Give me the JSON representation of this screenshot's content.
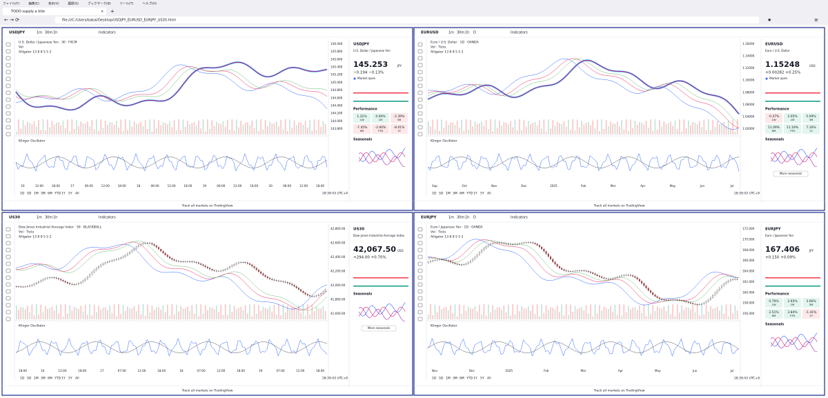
{
  "menu": [
    "ファイル(F)",
    "編集(E)",
    "表示(V)",
    "履歴(S)",
    "ブックマーク(B)",
    "ツール(T)",
    "ヘルプ(H)"
  ],
  "tab": {
    "title": "TODO supply a title"
  },
  "address": "file:///C:/Users/bakai/Desktop/USDJPY_EURUSD_EURJPY_US30.html",
  "widgets": [
    {
      "symbol": "USDJPY",
      "intervals": [
        "1m",
        "30m",
        "1h"
      ],
      "indicators": "Indicators",
      "legend": [
        "U.S. Dollar / Japanese Yen · 30 · FXCM",
        "Vol",
        "Alligator 13 8 8 5 5 2"
      ],
      "oscillator": "Klinger Oscillator",
      "price_ticks": [
        "146.000",
        "145.800",
        "145.600",
        "145.400",
        "145.200",
        "145.000",
        "144.800",
        "144.600",
        "144.400",
        "144.200",
        "144.000",
        "143.800"
      ],
      "time_ticks": [
        "16",
        "12:00",
        "18:00",
        "17",
        "06:00",
        "12:00",
        "18:00",
        "18",
        "06:00",
        "12:00",
        "18:00",
        "19",
        "06:00",
        "12:00",
        "18:00",
        "20",
        "06:00",
        "12:00",
        "18:00"
      ],
      "ranges": [
        "1D",
        "5D",
        "1M",
        "3M",
        "6M",
        "YTD",
        "1Y",
        "5Y",
        "All"
      ],
      "clock": "18:39:43 UTC+9",
      "footer": "Track all markets on TradingView",
      "side": {
        "symbol": "USDJPY",
        "name": "U.S. Dollar / Japanese Yen",
        "price": "145.253",
        "unit": "JPY",
        "change": "−0.194 −0.13%",
        "status": "Market open",
        "performance": {
          "title": "Performance",
          "cells": [
            {
              "value": "1.31%",
              "period": "1W"
            },
            {
              "value": "0.00%",
              "period": "1M"
            },
            {
              "value": "-2.39%",
              "period": "3M"
            },
            {
              "value": "-7.45%",
              "period": "6M"
            },
            {
              "value": "-2.60%",
              "period": "YTD"
            },
            {
              "value": "-8.01%",
              "period": "1Y"
            }
          ]
        },
        "seasonals": "Seasonals"
      },
      "style": "line"
    },
    {
      "symbol": "EURUSD",
      "intervals": [
        "1m",
        "30m",
        "1h",
        "D"
      ],
      "indicators": "Indicators",
      "legend": [
        "Euro / U.S. Dollar · 1D · OANDA",
        "Vol · Ticks",
        "Alligator 13 8 8 5 5 2"
      ],
      "oscillator": "Klinger Oscillator",
      "price_ticks": [
        "1.16000",
        "1.14000",
        "1.12000",
        "1.10000",
        "1.08000",
        "1.06000",
        "1.04000",
        "1.02000"
      ],
      "time_ticks": [
        "Sep",
        "Oct",
        "Nov",
        "Dec",
        "2025",
        "Feb",
        "Mar",
        "Apr",
        "May",
        "Jun",
        "Jul"
      ],
      "ranges": [
        "1D",
        "5D",
        "1M",
        "3M",
        "6M",
        "YTD",
        "1Y",
        "5Y",
        "All"
      ],
      "clock": "18:39:43 UTC+9",
      "footer": "Track all markets on TradingView",
      "side": {
        "symbol": "EURUSD",
        "name": "Euro / U.S. Dollar",
        "price": "1.15248",
        "unit": "USD",
        "change": "+0.00282 +0.25%",
        "status": "Market open",
        "performance": {
          "title": "Performance",
          "cells": [
            {
              "value": "-0.47%",
              "period": "1W"
            },
            {
              "value": "2.05%",
              "period": "1M"
            },
            {
              "value": "5.09%",
              "period": "3M"
            },
            {
              "value": "11.09%",
              "period": "6M"
            },
            {
              "value": "11.19%",
              "period": "YTD"
            },
            {
              "value": "7.16%",
              "period": "1Y"
            }
          ]
        },
        "seasonals": "Seasonals",
        "more": "More seasonals"
      },
      "style": "line"
    },
    {
      "symbol": "US30",
      "intervals": [
        "1m",
        "30m",
        "1h"
      ],
      "indicators": "Indicators",
      "legend": [
        "Dow Jones Industrial Average Index · 30 · BLACKBULL",
        "Vol · Ticks",
        "Alligator 13 8 8 5 5 2"
      ],
      "oscillator": "Klinger Oscillator",
      "price_ticks": [
        "42,800.00",
        "42,600.00",
        "42,400.00",
        "42,200.00",
        "42,000.00",
        "41,800.00",
        "41,600.00"
      ],
      "time_ticks": [
        "18:00",
        "16",
        "12:00",
        "18:00",
        "17",
        "07:00",
        "12:00",
        "18:00",
        "18",
        "07:00",
        "12:00",
        "18:00",
        "19",
        "07:00",
        "12:00",
        "18:00"
      ],
      "ranges": [
        "1D",
        "5D",
        "1M",
        "3M",
        "6M",
        "YTD",
        "1Y",
        "5Y",
        "All"
      ],
      "clock": "18:39:43 UTC+9",
      "footer": "Track all markets on TradingView",
      "side": {
        "symbol": "US30",
        "name": "Dow Jones Industrial Average Index",
        "price": "42,067.50",
        "unit": "USD",
        "change": "+294.00 +0.70%",
        "seasonals": "Seasonals",
        "more": "More seasonals"
      },
      "style": "candles"
    },
    {
      "symbol": "EURJPY",
      "intervals": [
        "1m",
        "30m",
        "1h",
        "D"
      ],
      "indicators": "Indicators",
      "legend": [
        "Euro / Japanese Yen · 1D · OANDA",
        "Vol · Ticks",
        "Alligator 13 8 8 5 5 2"
      ],
      "oscillator": "Klinger Oscillator",
      "price_ticks": [
        "172.000",
        "170.000",
        "168.000",
        "166.000",
        "164.000",
        "162.000",
        "160.000",
        "158.000",
        "156.000"
      ],
      "time_ticks": [
        "Nov",
        "Dec",
        "2025",
        "Feb",
        "Mar",
        "Apr",
        "May",
        "Jun",
        "Jul"
      ],
      "ranges": [
        "1D",
        "5D",
        "1M",
        "3M",
        "6M",
        "YTD",
        "1Y",
        "5Y",
        "All"
      ],
      "clock": "18:39:43 UTC+9",
      "footer": "Track all markets on TradingView",
      "side": {
        "symbol": "EURJPY",
        "name": "Euro / Japanese Yen",
        "price": "167.406",
        "unit": "JPY",
        "change": "+0.150 +0.09%",
        "performance": {
          "title": "Performance",
          "cells": [
            {
              "value": "0.70%",
              "period": "1W"
            },
            {
              "value": "2.65%",
              "period": "1M"
            },
            {
              "value": "3.66%",
              "period": "3M"
            },
            {
              "value": "2.51%",
              "period": "6M"
            },
            {
              "value": "3.84%",
              "period": "YTD"
            },
            {
              "value": "-1.41%",
              "period": "1Y"
            }
          ]
        },
        "seasonals": "Seasonals"
      },
      "style": "candles"
    }
  ]
}
